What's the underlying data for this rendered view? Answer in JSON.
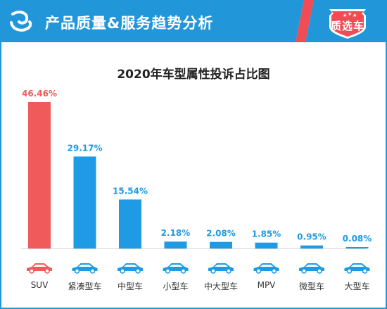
{
  "header": {
    "title": "产品质量&服务趋势分析",
    "badge": "质选车",
    "logo_icon": "brand-logo-icon",
    "colors": {
      "banner": "#2196d9",
      "accent": "#ef4c56",
      "frame": "#2196d9"
    }
  },
  "chart_data": {
    "type": "bar",
    "title": "2020年车型属性投诉占比图",
    "categories": [
      "SUV",
      "紧凑型车",
      "中型车",
      "小型车",
      "中大型车",
      "MPV",
      "微型车",
      "大型车"
    ],
    "values": [
      46.46,
      29.17,
      15.54,
      2.18,
      2.08,
      1.85,
      0.95,
      0.08
    ],
    "value_labels": [
      "46.46%",
      "29.17%",
      "15.54%",
      "2.18%",
      "2.08%",
      "1.85%",
      "0.95%",
      "0.08%"
    ],
    "unit": "%",
    "highlight_index": 0,
    "colors": {
      "highlight": "#f05a5a",
      "default": "#1e9be4"
    },
    "category_icons": [
      "suv-car-icon",
      "compact-car-icon",
      "mid-size-car-icon",
      "small-car-icon",
      "mid-large-car-icon",
      "mpv-car-icon",
      "mini-car-icon",
      "large-car-icon"
    ],
    "xlabel": "",
    "ylabel": "",
    "ylim": [
      0,
      50
    ],
    "grid": false,
    "legend": "none"
  }
}
